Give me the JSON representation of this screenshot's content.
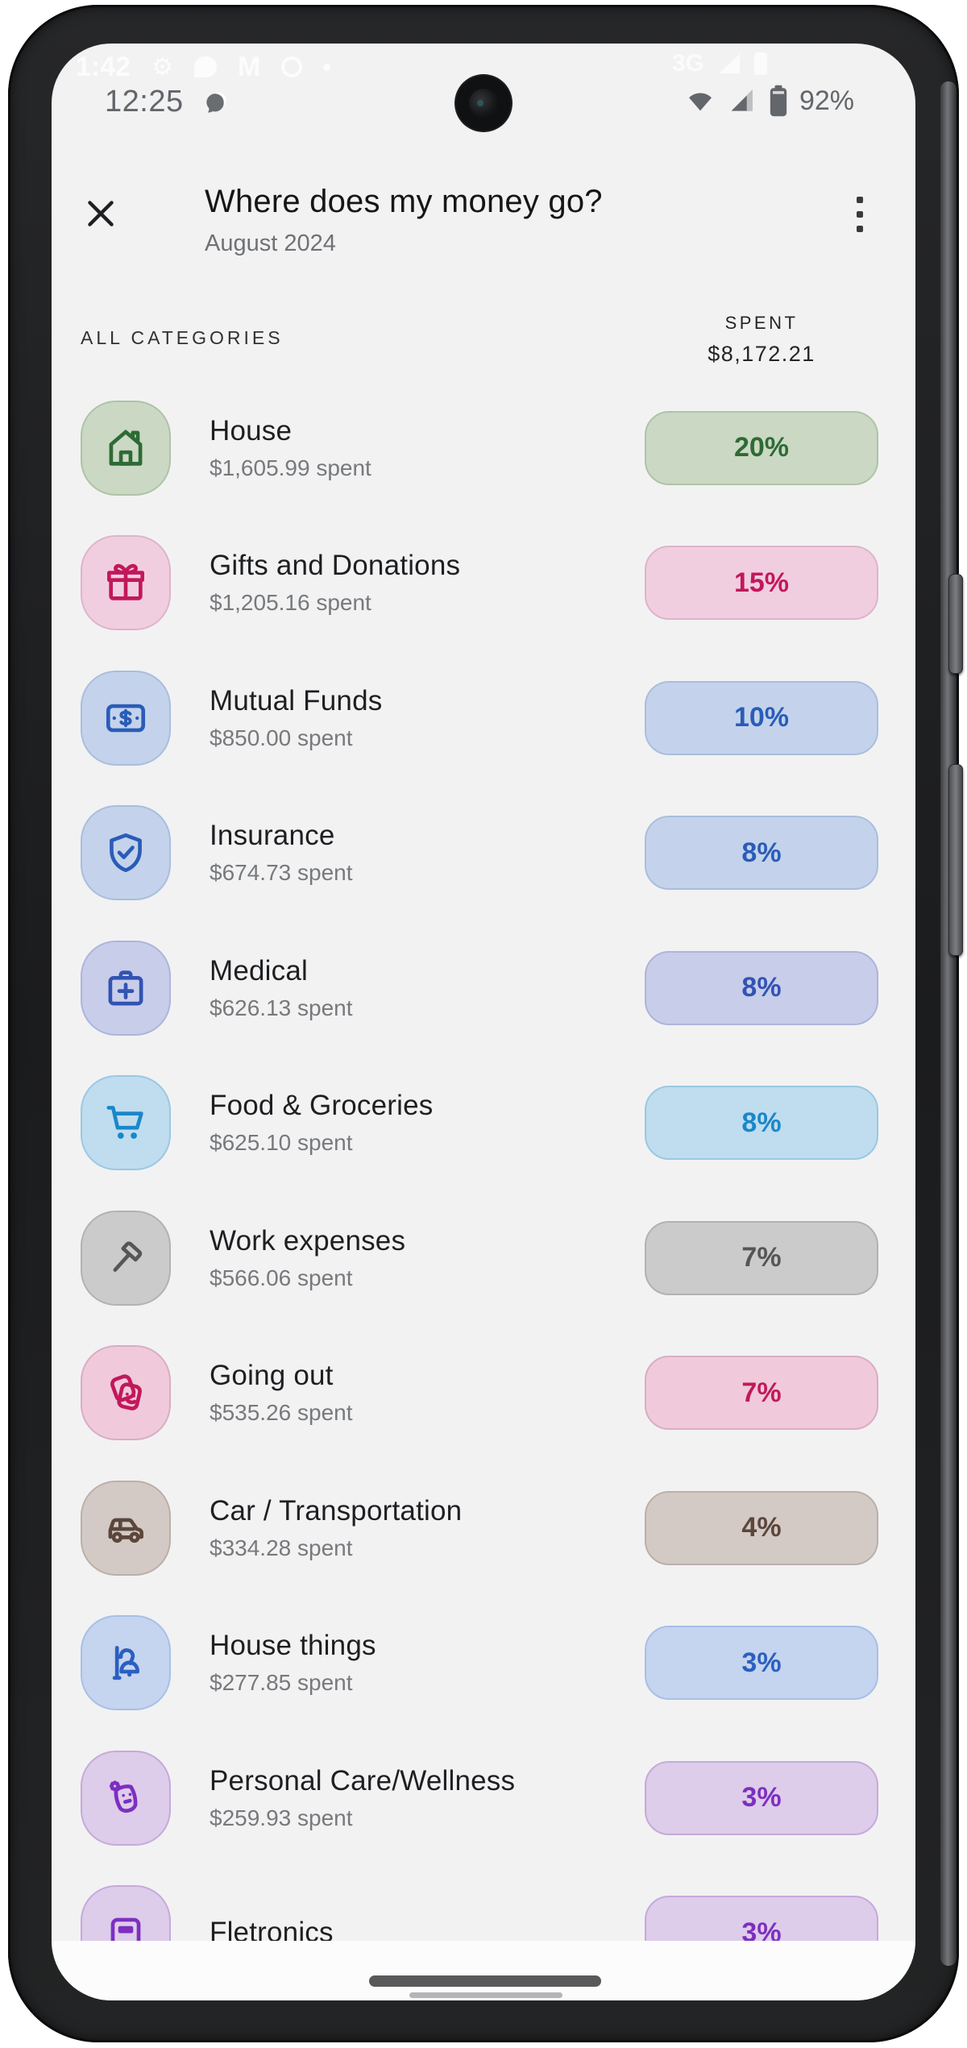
{
  "status_bar": {
    "time": "12:25",
    "battery_percent": "92%",
    "ghost_time": "1:42",
    "ghost_network": "3G",
    "ghost_gmail_letter": "M"
  },
  "header": {
    "title": "Where does my money go?",
    "subtitle": "August 2024"
  },
  "list_header": {
    "all_categories_label": "ALL CATEGORIES",
    "spent_label": "SPENT",
    "spent_value": "$8,172.21"
  },
  "categories": [
    {
      "name": "House",
      "spent": "$1,605.99 spent",
      "percent": "20%",
      "icon": "house-icon",
      "bg": "#cbd8c4",
      "border": "#afc3a7",
      "fg": "#2d6b34"
    },
    {
      "name": "Gifts and Donations",
      "spent": "$1,205.16 spent",
      "percent": "15%",
      "icon": "gift-icon",
      "bg": "#f1cedf",
      "border": "#deb4ca",
      "fg": "#c2185b"
    },
    {
      "name": "Mutual Funds",
      "spent": "$850.00 spent",
      "percent": "10%",
      "icon": "banknote-icon",
      "bg": "#c4d3eb",
      "border": "#a9bedd",
      "fg": "#2a5cb8"
    },
    {
      "name": "Insurance",
      "spent": "$674.73 spent",
      "percent": "8%",
      "icon": "shield-check-icon",
      "bg": "#c4d3eb",
      "border": "#a9bedd",
      "fg": "#2a5cb8"
    },
    {
      "name": "Medical",
      "spent": "$626.13 spent",
      "percent": "8%",
      "icon": "medical-bag-icon",
      "bg": "#c8cdea",
      "border": "#adb5da",
      "fg": "#3253b4"
    },
    {
      "name": "Food & Groceries",
      "spent": "$625.10 spent",
      "percent": "8%",
      "icon": "cart-icon",
      "bg": "#bfddef",
      "border": "#9bc8e2",
      "fg": "#1a87c9"
    },
    {
      "name": "Work expenses",
      "spent": "$566.06 spent",
      "percent": "7%",
      "icon": "hammer-icon",
      "bg": "#cbcbcb",
      "border": "#b2b2b2",
      "fg": "#565656"
    },
    {
      "name": "Going out",
      "spent": "$535.26 spent",
      "percent": "7%",
      "icon": "party-masks-icon",
      "bg": "#f0cada",
      "border": "#d9adc3",
      "fg": "#c2185b"
    },
    {
      "name": "Car / Transportation",
      "spent": "$334.28 spent",
      "percent": "4%",
      "icon": "car-icon",
      "bg": "#d3cac5",
      "border": "#bcafa8",
      "fg": "#5c463c"
    },
    {
      "name": "House things",
      "spent": "$277.85 spent",
      "percent": "3%",
      "icon": "lamp-icon",
      "bg": "#c5d4ef",
      "border": "#a7c0e5",
      "fg": "#2b5fc0"
    },
    {
      "name": "Personal Care/Wellness",
      "spent": "$259.93 spent",
      "percent": "3%",
      "icon": "spa-mask-icon",
      "bg": "#ddccea",
      "border": "#c6aada",
      "fg": "#7d2fc0"
    },
    {
      "name": "Fletronics",
      "spent": "",
      "percent": "3%",
      "icon": "electronics-icon",
      "bg": "#ddccea",
      "border": "#c6aada",
      "fg": "#7d2fc0"
    }
  ]
}
